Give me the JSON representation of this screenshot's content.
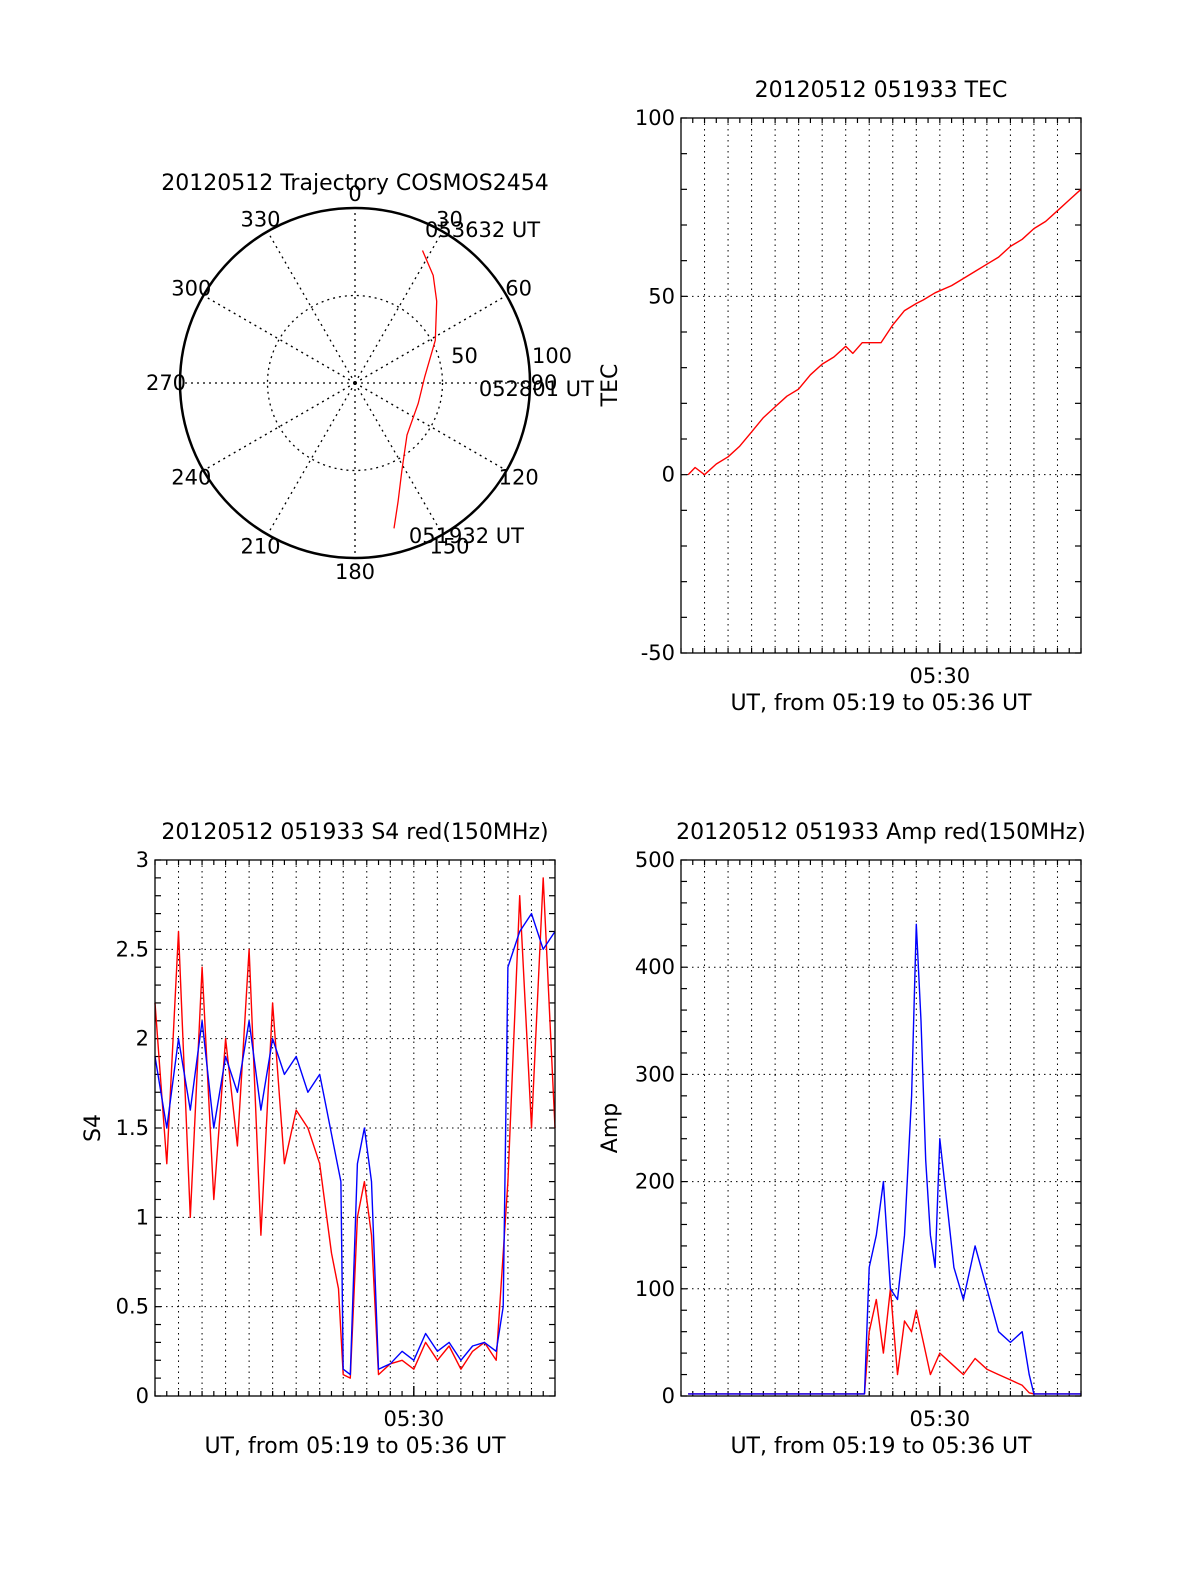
{
  "colors": {
    "red": "#ff0000",
    "blue": "#0000ff",
    "axis": "#000000",
    "grid": "#000000",
    "background": "#ffffff"
  },
  "polar": {
    "title": "20120512 Trajectory COSMOS2454",
    "azimuth_labels": [
      "0",
      "30",
      "60",
      "90",
      "120",
      "150",
      "180",
      "210",
      "240",
      "270",
      "300",
      "330"
    ],
    "radius_labels": [
      "50",
      "100"
    ],
    "trajectory": {
      "color": "red",
      "points": [
        {
          "az": 165,
          "r": 86
        },
        {
          "az": 160,
          "r": 72
        },
        {
          "az": 152,
          "r": 57
        },
        {
          "az": 135,
          "r": 42
        },
        {
          "az": 108,
          "r": 38
        },
        {
          "az": 85,
          "r": 40
        },
        {
          "az": 62,
          "r": 52
        },
        {
          "az": 45,
          "r": 66
        },
        {
          "az": 36,
          "r": 76
        },
        {
          "az": 27,
          "r": 85
        }
      ]
    },
    "point_labels": [
      {
        "text": "053632 UT",
        "az": 25,
        "r": 92
      },
      {
        "text": "052801 UT",
        "az": 96,
        "r": 70
      },
      {
        "text": "051932 UT",
        "az": 162,
        "r": 96
      }
    ]
  },
  "chart_data": [
    {
      "type": "line",
      "title": "20120512 051933 TEC",
      "xlabel": "UT, from 05:19 to 05:36 UT",
      "ylabel": "TEC",
      "xlim": [
        0,
        17
      ],
      "ylim": [
        -50,
        100
      ],
      "yticks": [
        -50,
        0,
        50,
        100
      ],
      "xtick_labels": [
        {
          "x": 11,
          "label": "05:30"
        }
      ],
      "grid": true,
      "series": [
        {
          "color": "red",
          "x": [
            0.3,
            0.6,
            1,
            1.5,
            2,
            2.5,
            3,
            3.5,
            4,
            4.5,
            5,
            5.5,
            6,
            6.5,
            7,
            7.3,
            7.7,
            8,
            8.5,
            9,
            9.5,
            10,
            10.3,
            10.8,
            11.5,
            12,
            12.5,
            13,
            13.5,
            14,
            14.5,
            15,
            15.5,
            16,
            16.5,
            17
          ],
          "y": [
            0,
            2,
            0,
            3,
            5,
            8,
            12,
            16,
            19,
            22,
            24,
            28,
            31,
            33,
            36,
            34,
            37,
            37,
            37,
            42,
            46,
            48,
            49,
            51,
            53,
            55,
            57,
            59,
            61,
            64,
            66,
            69,
            71,
            74,
            77,
            80
          ]
        }
      ]
    },
    {
      "type": "line",
      "title": "20120512 051933 S4 red(150MHz)",
      "xlabel": "UT, from 05:19 to 05:36 UT",
      "ylabel": "S4",
      "xlim": [
        0,
        17
      ],
      "ylim": [
        0,
        3
      ],
      "yticks": [
        0,
        0.5,
        1,
        1.5,
        2,
        2.5,
        3
      ],
      "xtick_labels": [
        {
          "x": 11,
          "label": "05:30"
        }
      ],
      "grid": true,
      "series": [
        {
          "color": "red",
          "x": [
            0,
            0.5,
            1,
            1.5,
            2,
            2.5,
            3,
            3.5,
            4,
            4.5,
            5,
            5.5,
            6,
            6.5,
            7,
            7.2,
            7.5,
            7.8,
            8,
            8.3,
            8.6,
            8.9,
            9.2,
            9.5,
            10,
            10.5,
            11,
            11.5,
            12,
            12.5,
            13,
            13.5,
            14,
            14.5,
            15,
            15.5,
            16,
            16.5,
            17
          ],
          "y": [
            2.2,
            1.3,
            2.6,
            1.0,
            2.4,
            1.1,
            2.0,
            1.4,
            2.5,
            0.9,
            2.2,
            1.3,
            1.6,
            1.5,
            1.3,
            1.1,
            0.8,
            0.6,
            0.12,
            0.1,
            1.0,
            1.2,
            0.9,
            0.12,
            0.18,
            0.2,
            0.15,
            0.3,
            0.2,
            0.28,
            0.15,
            0.25,
            0.3,
            0.2,
            1.2,
            2.8,
            1.5,
            2.9,
            1.5
          ]
        },
        {
          "color": "blue",
          "x": [
            0,
            0.5,
            1,
            1.5,
            2,
            2.5,
            3,
            3.5,
            4,
            4.5,
            5,
            5.5,
            6,
            6.5,
            7,
            7.3,
            7.6,
            7.9,
            8,
            8.3,
            8.6,
            8.9,
            9.2,
            9.5,
            10,
            10.5,
            11,
            11.5,
            12,
            12.5,
            13,
            13.5,
            14,
            14.5,
            14.8,
            15,
            15.5,
            16,
            16.5,
            17
          ],
          "y": [
            1.9,
            1.5,
            2.0,
            1.6,
            2.1,
            1.5,
            1.9,
            1.7,
            2.1,
            1.6,
            2.0,
            1.8,
            1.9,
            1.7,
            1.8,
            1.6,
            1.4,
            1.2,
            0.15,
            0.12,
            1.3,
            1.5,
            1.2,
            0.15,
            0.18,
            0.25,
            0.2,
            0.35,
            0.25,
            0.3,
            0.2,
            0.28,
            0.3,
            0.25,
            0.5,
            2.4,
            2.6,
            2.7,
            2.5,
            2.6
          ]
        }
      ]
    },
    {
      "type": "line",
      "title": "20120512 051933 Amp red(150MHz)",
      "xlabel": "UT, from 05:19 to 05:36 UT",
      "ylabel": "Amp",
      "xlim": [
        0,
        17
      ],
      "ylim": [
        0,
        500
      ],
      "yticks": [
        0,
        100,
        200,
        300,
        400,
        500
      ],
      "xtick_labels": [
        {
          "x": 11,
          "label": "05:30"
        }
      ],
      "grid": true,
      "series": [
        {
          "color": "red",
          "x": [
            0.3,
            1,
            2,
            3,
            4,
            5,
            6,
            7,
            7.8,
            8,
            8.3,
            8.6,
            8.9,
            9.2,
            9.5,
            9.8,
            10,
            10.3,
            10.6,
            11,
            11.5,
            12,
            12.5,
            13,
            13.5,
            14,
            14.5,
            14.8,
            15,
            16,
            17
          ],
          "y": [
            2,
            2,
            2,
            2,
            2,
            2,
            2,
            2,
            2,
            60,
            90,
            40,
            100,
            20,
            70,
            60,
            80,
            50,
            20,
            40,
            30,
            20,
            35,
            25,
            20,
            15,
            10,
            3,
            2,
            2,
            2
          ]
        },
        {
          "color": "blue",
          "x": [
            0.3,
            1,
            2,
            3,
            4,
            5,
            6,
            7,
            7.8,
            8,
            8.3,
            8.6,
            8.9,
            9.2,
            9.5,
            9.8,
            10,
            10.2,
            10.4,
            10.6,
            10.8,
            11,
            11.3,
            11.6,
            12,
            12.5,
            13,
            13.5,
            14,
            14.5,
            14.8,
            15,
            16,
            17
          ],
          "y": [
            2,
            2,
            2,
            2,
            2,
            2,
            2,
            2,
            2,
            120,
            150,
            200,
            100,
            90,
            150,
            280,
            440,
            350,
            220,
            150,
            120,
            240,
            180,
            120,
            90,
            140,
            100,
            60,
            50,
            60,
            20,
            2,
            2,
            2
          ]
        }
      ]
    }
  ]
}
